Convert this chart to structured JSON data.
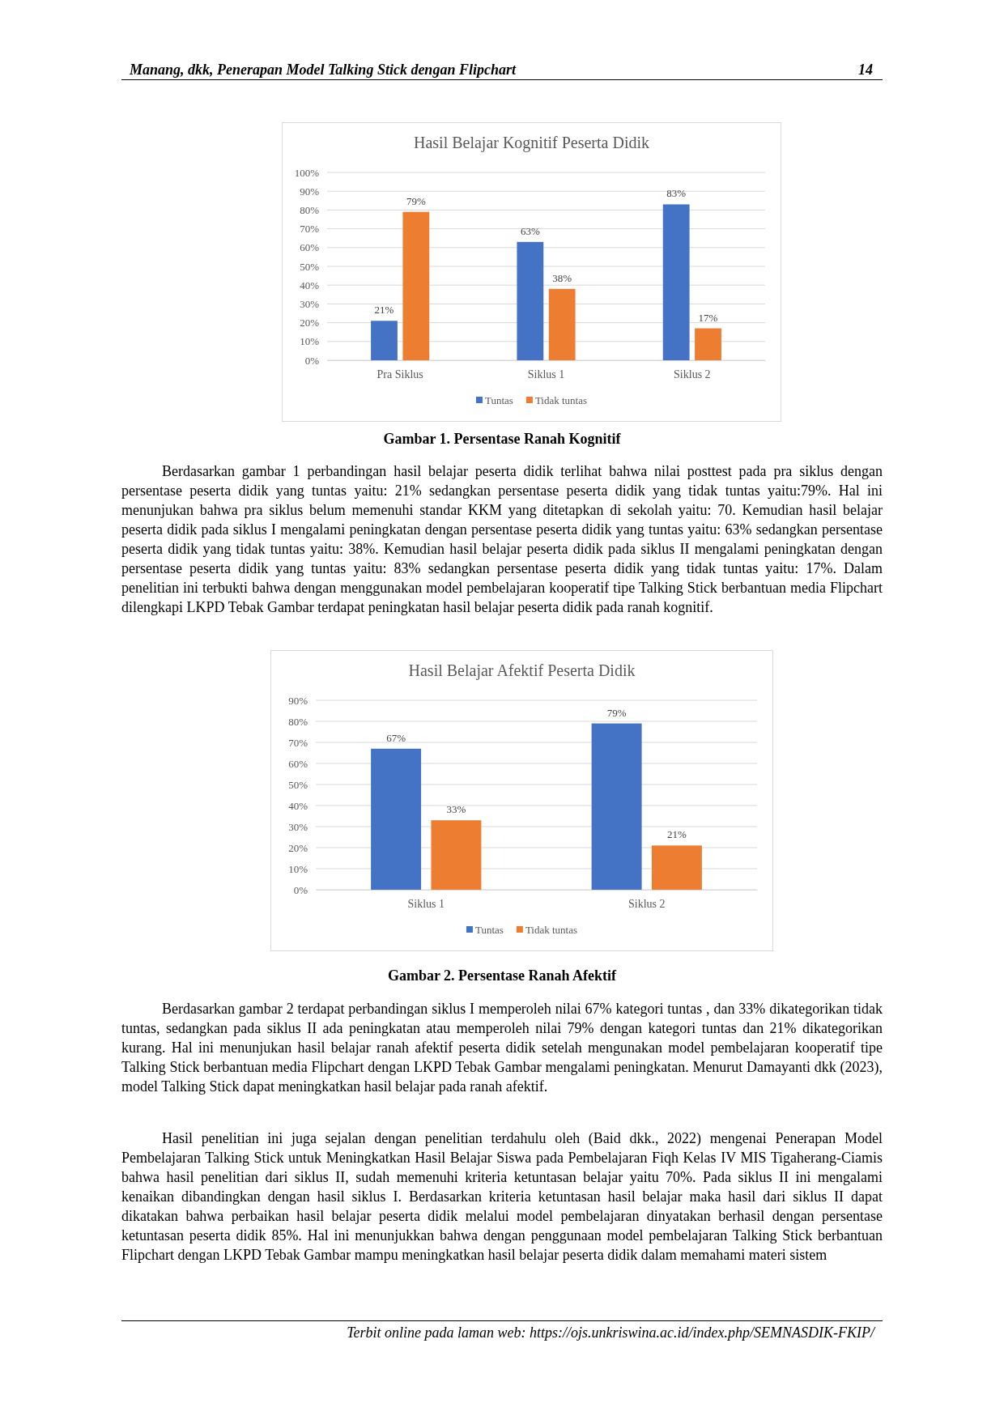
{
  "chart_data": [
    {
      "type": "bar",
      "title": "Hasil Belajar Kognitif Peserta Didik",
      "categories": [
        "Pra Siklus",
        "Siklus 1",
        "Siklus 2"
      ],
      "series": [
        {
          "name": "Tuntas",
          "color": "#4472c4",
          "values": [
            21,
            63,
            83
          ],
          "value_labels": [
            "21%",
            "63%",
            "83%"
          ]
        },
        {
          "name": "Tidak tuntas",
          "color": "#ed7d31",
          "values": [
            79,
            38,
            17
          ],
          "value_labels": [
            "79%",
            "38%",
            "17%"
          ]
        }
      ],
      "ylim": [
        0,
        100
      ],
      "yticks": [
        {
          "value": 0,
          "label": "0%"
        },
        {
          "value": 10,
          "label": "10%"
        },
        {
          "value": 20,
          "label": "20%"
        },
        {
          "value": 30,
          "label": "30%"
        },
        {
          "value": 40,
          "label": "40%"
        },
        {
          "value": 50,
          "label": "50%"
        },
        {
          "value": 60,
          "label": "60%"
        },
        {
          "value": 70,
          "label": "70%"
        },
        {
          "value": 80,
          "label": "80%"
        },
        {
          "value": 90,
          "label": "90%"
        },
        {
          "value": 100,
          "label": "100%"
        }
      ],
      "grid": "y",
      "legend": "bottom",
      "annotations": [
        "Manang, dkk, Penerapan Model Talking Stick dengan Flipchart",
        "14",
        "Gambar 1. Persentase Ranah Kognitif",
        "Berdasarkan gambar 1 perbandingan hasil belajar peserta didik terlihat bahwa nilai posttest pada pra siklus dengan persentase peserta didik yang tuntas yaitu: 21% sedangkan persentase peserta didik yang tidak tuntas yaitu:79%. Hal ini menunjukan bahwa pra siklus belum memenuhi standar KKM yang ditetapkan di sekolah yaitu: 70. Kemudian hasil belajar peserta didik pada siklus I mengalami peningkatan dengan persentase peserta didik yang tuntas yaitu: 63% sedangkan persentase peserta didik yang tidak tuntas yaitu: 38%. Kemudian hasil belajar peserta didik pada siklus II mengalami peningkatan dengan persentase peserta didik yang tuntas yaitu: 83% sedangkan persentase peserta didik yang tidak tuntas yaitu: 17%. Dalam penelitian ini terbukti bahwa dengan menggunakan model pembelajaran kooperatif tipe Talking Stick berbantuan media Flipchart dilengkapi LKPD Tebak Gambar terdapat peningkatan hasil belajar peserta didik pada ranah kognitif."
      ]
    },
    {
      "type": "bar",
      "title": "Hasil Belajar Afektif Peserta Didik",
      "categories": [
        "Siklus 1",
        "Siklus 2"
      ],
      "series": [
        {
          "name": "Tuntas",
          "color": "#4472c4",
          "values": [
            67,
            79
          ],
          "value_labels": [
            "67%",
            "79%"
          ]
        },
        {
          "name": "Tidak tuntas",
          "color": "#ed7d31",
          "values": [
            33,
            21
          ],
          "value_labels": [
            "33%",
            "21%"
          ]
        }
      ],
      "ylim": [
        0,
        90
      ],
      "yticks": [
        {
          "value": 0,
          "label": "0%"
        },
        {
          "value": 10,
          "label": "10%"
        },
        {
          "value": 20,
          "label": "20%"
        },
        {
          "value": 30,
          "label": "30%"
        },
        {
          "value": 40,
          "label": "40%"
        },
        {
          "value": 50,
          "label": "50%"
        },
        {
          "value": 60,
          "label": "60%"
        },
        {
          "value": 70,
          "label": "70%"
        },
        {
          "value": 80,
          "label": "80%"
        },
        {
          "value": 90,
          "label": "90%"
        }
      ],
      "grid": "y",
      "legend": "bottom",
      "annotations": [
        "Gambar 2. Persentase Ranah Afektif",
        "Berdasarkan gambar 2 terdapat perbandingan siklus I memperoleh nilai 67% kategori tuntas , dan 33% dikategorikan tidak tuntas, sedangkan pada siklus II ada peningkatan atau memperoleh nilai 79% dengan kategori tuntas dan 21% dikategorikan kurang. Hal ini menunjukan hasil belajar ranah afektif peserta didik setelah mengunakan model pembelajaran kooperatif tipe Talking Stick berbantuan media Flipchart dengan LKPD Tebak Gambar mengalami peningkatan. Menurut Damayanti dkk (2023), model Talking Stick dapat meningkatkan hasil belajar pada ranah afektif.",
        "Hasil penelitian ini juga sejalan dengan penelitian terdahulu oleh (Baid dkk., 2022) mengenai Penerapan Model Pembelajaran Talking Stick untuk Meningkatkan Hasil Belajar Siswa pada Pembelajaran Fiqh Kelas IV MIS Tigaherang-Ciamis bahwa hasil penelitian dari siklus II, sudah memenuhi kriteria ketuntasan belajar yaitu 70%. Pada siklus II ini mengalami kenaikan dibandingkan dengan hasil siklus I. Berdasarkan kriteria ketuntasan hasil belajar maka hasil dari siklus II dapat dikatakan bahwa perbaikan hasil belajar peserta didik melalui model pembelajaran dinyatakan berhasil dengan persentase ketuntasan peserta didik 85%. Hal ini menunjukkan bahwa dengan penggunaan model pembelajaran Talking Stick berbantuan Flipchart dengan LKPD Tebak Gambar mampu meningkatkan hasil belajar peserta didik dalam memahami materi sistem",
        "Terbit online pada laman web: https://ojs.unkriswina.ac.id/index.php/SEMNASDIK-FKIP/"
      ]
    }
  ]
}
